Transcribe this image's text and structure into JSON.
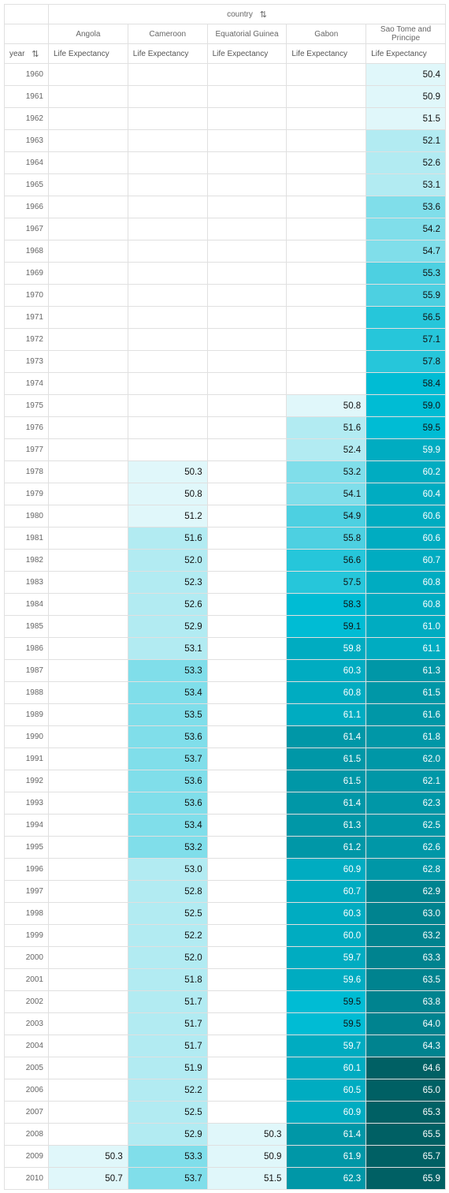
{
  "header": {
    "column_dim": "country",
    "row_dim": "year",
    "measure": "Life Expectancy"
  },
  "countries": [
    "Angola",
    "Cameroon",
    "Equatorial Guinea",
    "Gabon",
    "Sao Tome and Principe"
  ],
  "colors": {
    "scale": [
      "#e0f7fa",
      "#b2ebf2",
      "#80deea",
      "#4dd0e1",
      "#26c6da",
      "#00bcd4",
      "#00acc1",
      "#0097a7",
      "#00838f",
      "#006064"
    ],
    "scale_min": 50,
    "scale_max": 66,
    "dark_text": "#111111",
    "light_text": "#ffffff"
  },
  "chart_data": {
    "type": "table",
    "title": "",
    "columns": [
      "Angola",
      "Cameroon",
      "Equatorial Guinea",
      "Gabon",
      "Sao Tome and Principe"
    ],
    "rows": [
      {
        "year": "1960",
        "values": [
          null,
          null,
          null,
          null,
          "50.4"
        ]
      },
      {
        "year": "1961",
        "values": [
          null,
          null,
          null,
          null,
          "50.9"
        ]
      },
      {
        "year": "1962",
        "values": [
          null,
          null,
          null,
          null,
          "51.5"
        ]
      },
      {
        "year": "1963",
        "values": [
          null,
          null,
          null,
          null,
          "52.1"
        ]
      },
      {
        "year": "1964",
        "values": [
          null,
          null,
          null,
          null,
          "52.6"
        ]
      },
      {
        "year": "1965",
        "values": [
          null,
          null,
          null,
          null,
          "53.1"
        ]
      },
      {
        "year": "1966",
        "values": [
          null,
          null,
          null,
          null,
          "53.6"
        ]
      },
      {
        "year": "1967",
        "values": [
          null,
          null,
          null,
          null,
          "54.2"
        ]
      },
      {
        "year": "1968",
        "values": [
          null,
          null,
          null,
          null,
          "54.7"
        ]
      },
      {
        "year": "1969",
        "values": [
          null,
          null,
          null,
          null,
          "55.3"
        ]
      },
      {
        "year": "1970",
        "values": [
          null,
          null,
          null,
          null,
          "55.9"
        ]
      },
      {
        "year": "1971",
        "values": [
          null,
          null,
          null,
          null,
          "56.5"
        ]
      },
      {
        "year": "1972",
        "values": [
          null,
          null,
          null,
          null,
          "57.1"
        ]
      },
      {
        "year": "1973",
        "values": [
          null,
          null,
          null,
          null,
          "57.8"
        ]
      },
      {
        "year": "1974",
        "values": [
          null,
          null,
          null,
          null,
          "58.4"
        ]
      },
      {
        "year": "1975",
        "values": [
          null,
          null,
          null,
          "50.8",
          "59.0"
        ]
      },
      {
        "year": "1976",
        "values": [
          null,
          null,
          null,
          "51.6",
          "59.5"
        ]
      },
      {
        "year": "1977",
        "values": [
          null,
          null,
          null,
          "52.4",
          "59.9"
        ]
      },
      {
        "year": "1978",
        "values": [
          null,
          "50.3",
          null,
          "53.2",
          "60.2"
        ]
      },
      {
        "year": "1979",
        "values": [
          null,
          "50.8",
          null,
          "54.1",
          "60.4"
        ]
      },
      {
        "year": "1980",
        "values": [
          null,
          "51.2",
          null,
          "54.9",
          "60.6"
        ]
      },
      {
        "year": "1981",
        "values": [
          null,
          "51.6",
          null,
          "55.8",
          "60.6"
        ]
      },
      {
        "year": "1982",
        "values": [
          null,
          "52.0",
          null,
          "56.6",
          "60.7"
        ]
      },
      {
        "year": "1983",
        "values": [
          null,
          "52.3",
          null,
          "57.5",
          "60.8"
        ]
      },
      {
        "year": "1984",
        "values": [
          null,
          "52.6",
          null,
          "58.3",
          "60.8"
        ]
      },
      {
        "year": "1985",
        "values": [
          null,
          "52.9",
          null,
          "59.1",
          "61.0"
        ]
      },
      {
        "year": "1986",
        "values": [
          null,
          "53.1",
          null,
          "59.8",
          "61.1"
        ]
      },
      {
        "year": "1987",
        "values": [
          null,
          "53.3",
          null,
          "60.3",
          "61.3"
        ]
      },
      {
        "year": "1988",
        "values": [
          null,
          "53.4",
          null,
          "60.8",
          "61.5"
        ]
      },
      {
        "year": "1989",
        "values": [
          null,
          "53.5",
          null,
          "61.1",
          "61.6"
        ]
      },
      {
        "year": "1990",
        "values": [
          null,
          "53.6",
          null,
          "61.4",
          "61.8"
        ]
      },
      {
        "year": "1991",
        "values": [
          null,
          "53.7",
          null,
          "61.5",
          "62.0"
        ]
      },
      {
        "year": "1992",
        "values": [
          null,
          "53.6",
          null,
          "61.5",
          "62.1"
        ]
      },
      {
        "year": "1993",
        "values": [
          null,
          "53.6",
          null,
          "61.4",
          "62.3"
        ]
      },
      {
        "year": "1994",
        "values": [
          null,
          "53.4",
          null,
          "61.3",
          "62.5"
        ]
      },
      {
        "year": "1995",
        "values": [
          null,
          "53.2",
          null,
          "61.2",
          "62.6"
        ]
      },
      {
        "year": "1996",
        "values": [
          null,
          "53.0",
          null,
          "60.9",
          "62.8"
        ]
      },
      {
        "year": "1997",
        "values": [
          null,
          "52.8",
          null,
          "60.7",
          "62.9"
        ]
      },
      {
        "year": "1998",
        "values": [
          null,
          "52.5",
          null,
          "60.3",
          "63.0"
        ]
      },
      {
        "year": "1999",
        "values": [
          null,
          "52.2",
          null,
          "60.0",
          "63.2"
        ]
      },
      {
        "year": "2000",
        "values": [
          null,
          "52.0",
          null,
          "59.7",
          "63.3"
        ]
      },
      {
        "year": "2001",
        "values": [
          null,
          "51.8",
          null,
          "59.6",
          "63.5"
        ]
      },
      {
        "year": "2002",
        "values": [
          null,
          "51.7",
          null,
          "59.5",
          "63.8"
        ]
      },
      {
        "year": "2003",
        "values": [
          null,
          "51.7",
          null,
          "59.5",
          "64.0"
        ]
      },
      {
        "year": "2004",
        "values": [
          null,
          "51.7",
          null,
          "59.7",
          "64.3"
        ]
      },
      {
        "year": "2005",
        "values": [
          null,
          "51.9",
          null,
          "60.1",
          "64.6"
        ]
      },
      {
        "year": "2006",
        "values": [
          null,
          "52.2",
          null,
          "60.5",
          "65.0"
        ]
      },
      {
        "year": "2007",
        "values": [
          null,
          "52.5",
          null,
          "60.9",
          "65.3"
        ]
      },
      {
        "year": "2008",
        "values": [
          null,
          "52.9",
          "50.3",
          "61.4",
          "65.5"
        ]
      },
      {
        "year": "2009",
        "values": [
          "50.3",
          "53.3",
          "50.9",
          "61.9",
          "65.7"
        ]
      },
      {
        "year": "2010",
        "values": [
          "50.7",
          "53.7",
          "51.5",
          "62.3",
          "65.9"
        ]
      }
    ]
  }
}
